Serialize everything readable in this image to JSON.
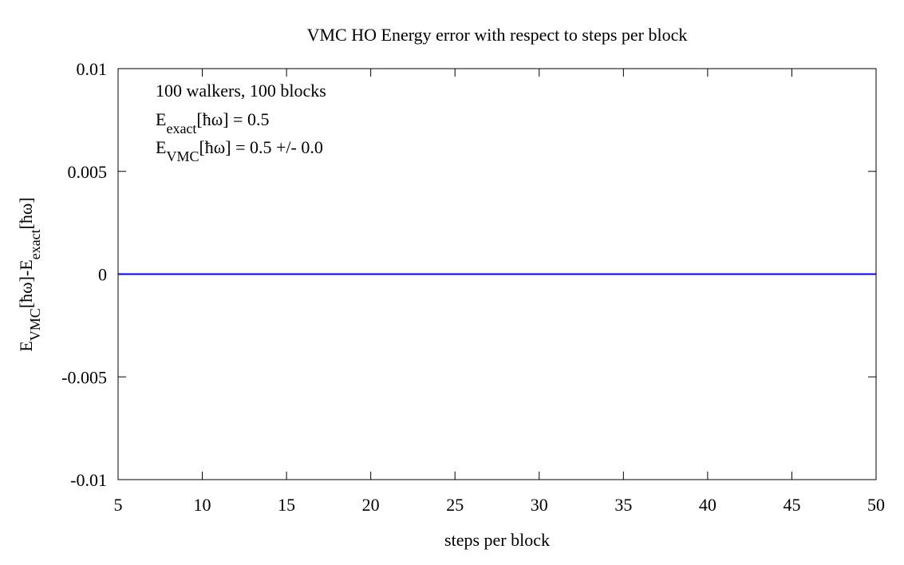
{
  "chart_data": {
    "type": "line",
    "title": "VMC HO Energy error with respect to steps per block",
    "xlabel": "steps per block",
    "ylabel": {
      "parts": [
        {
          "text": "E",
          "sub": false
        },
        {
          "text": "VMC",
          "sub": true
        },
        {
          "text": "[ħω]-E",
          "sub": false
        },
        {
          "text": "exact",
          "sub": true
        },
        {
          "text": "[ħω]",
          "sub": false
        }
      ]
    },
    "xlim": [
      5,
      50
    ],
    "ylim": [
      -0.01,
      0.01
    ],
    "xticks": [
      5,
      10,
      15,
      20,
      25,
      30,
      35,
      40,
      45,
      50
    ],
    "xtick_labels": [
      "5",
      "10",
      "15",
      "20",
      "25",
      "30",
      "35",
      "40",
      "45",
      "50"
    ],
    "yticks": [
      0.01,
      0.005,
      0,
      -0.005,
      -0.01
    ],
    "ytick_labels": [
      "0.01",
      "0.005",
      "0",
      "-0.005",
      "-0.01"
    ],
    "grid": false,
    "series": [
      {
        "color": "#0000ff",
        "x": [
          5,
          50
        ],
        "y": [
          0,
          0
        ]
      }
    ],
    "annotations": [
      {
        "parts": [
          {
            "text": "100 walkers, 100 blocks",
            "sub": false
          }
        ]
      },
      {
        "parts": [
          {
            "text": "E",
            "sub": false
          },
          {
            "text": "exact",
            "sub": true
          },
          {
            "text": "[ħω] = 0.5",
            "sub": false
          }
        ]
      },
      {
        "parts": [
          {
            "text": "E",
            "sub": false
          },
          {
            "text": "VMC",
            "sub": true
          },
          {
            "text": "[ħω] = 0.5 +/- 0.0",
            "sub": false
          }
        ]
      }
    ]
  }
}
